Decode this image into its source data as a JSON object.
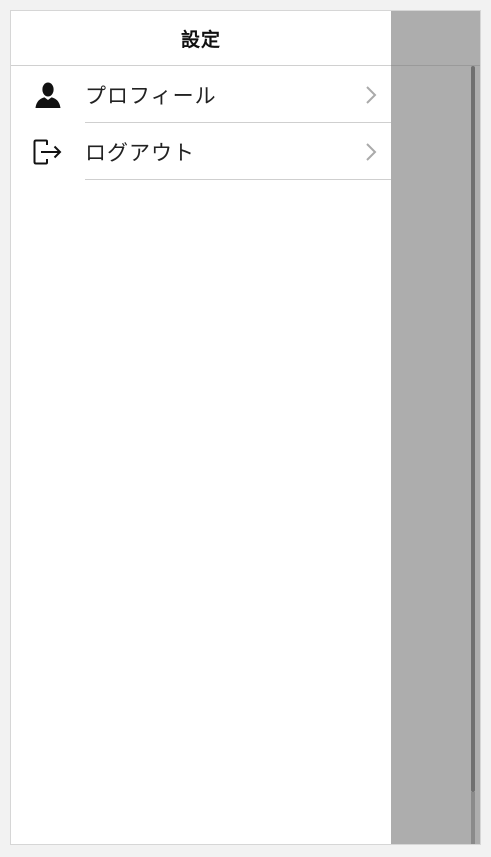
{
  "header": {
    "title": "設定"
  },
  "menu": {
    "items": [
      {
        "label": "プロフィール",
        "icon": "user-icon"
      },
      {
        "label": "ログアウト",
        "icon": "logout-icon"
      }
    ]
  },
  "colors": {
    "backdrop": "#adadad",
    "divider": "#cfcfcf",
    "chevron": "#aaaaaa"
  }
}
